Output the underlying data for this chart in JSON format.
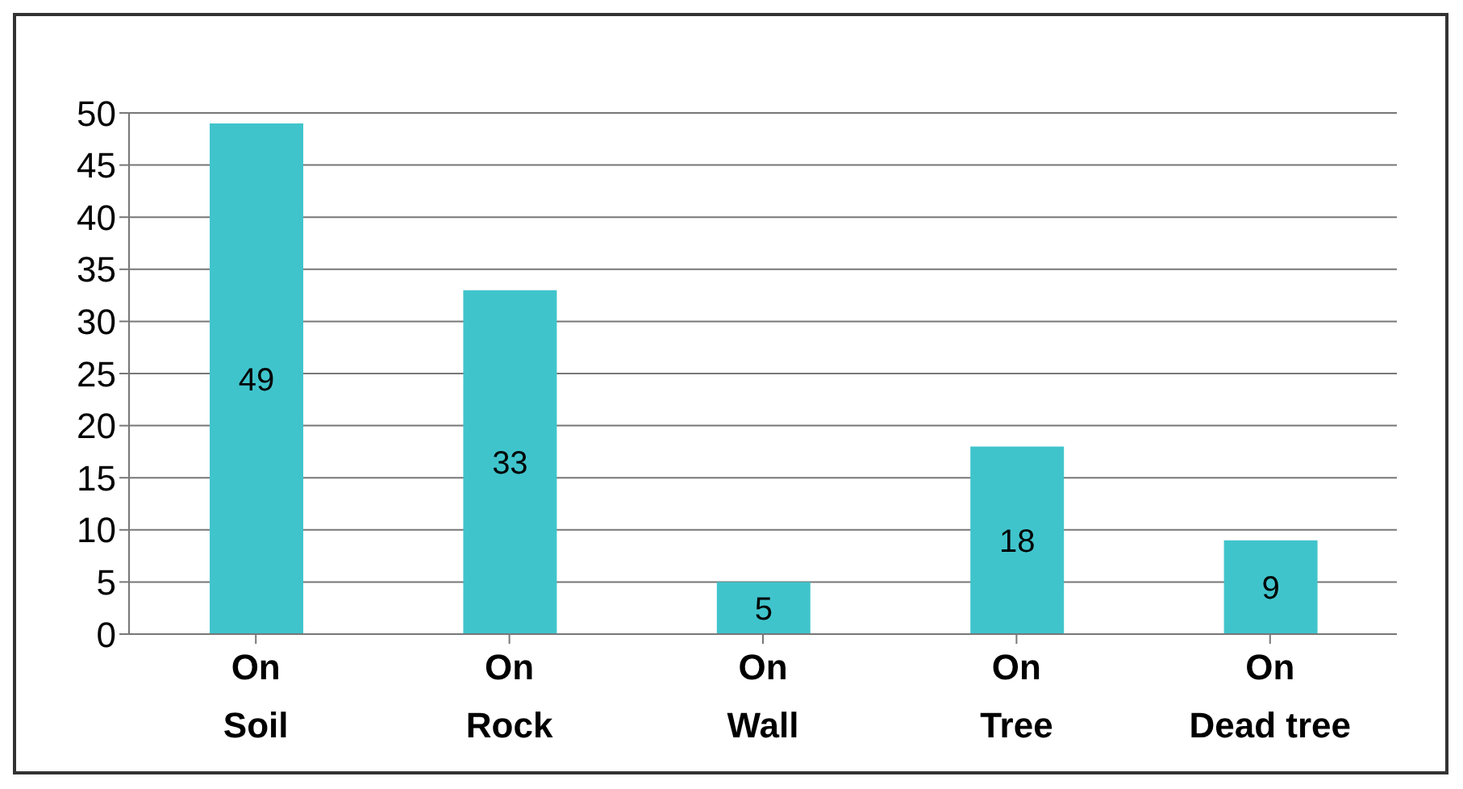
{
  "chart_data": {
    "type": "bar",
    "categories": [
      "On\nSoil",
      "On\nRock",
      "On\nWall",
      "On\nTree",
      "On\nDead tree"
    ],
    "values": [
      49,
      33,
      5,
      18,
      9
    ],
    "color": "#40c4cc",
    "ylim": [
      0,
      50
    ],
    "yticks": [
      0,
      5,
      10,
      15,
      20,
      25,
      30,
      35,
      40,
      45,
      50
    ],
    "grid": "y",
    "data_labels": true
  }
}
